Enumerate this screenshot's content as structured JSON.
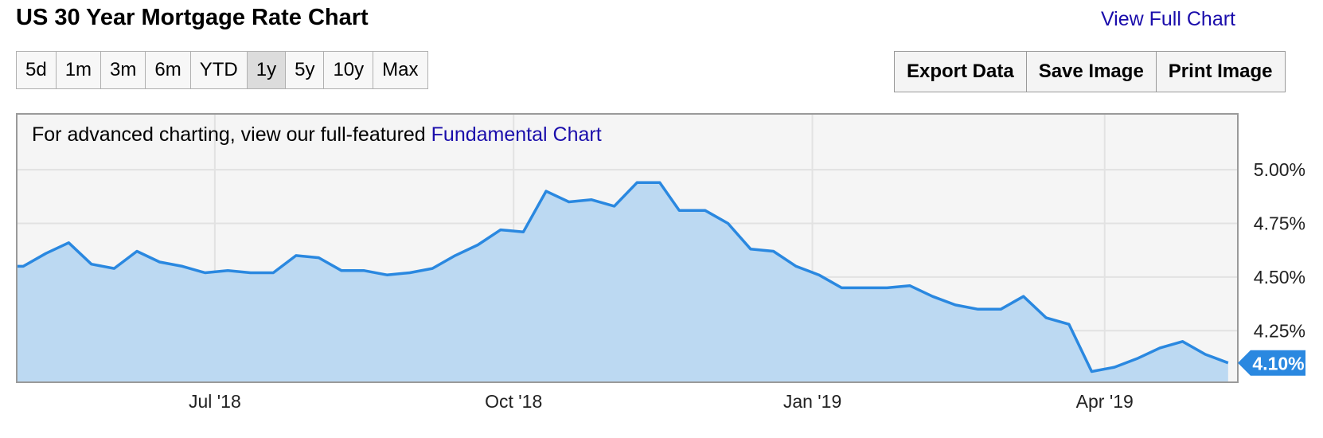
{
  "header": {
    "title": "US 30 Year Mortgage Rate Chart",
    "view_full_chart": "View Full Chart"
  },
  "ranges": [
    {
      "label": "5d",
      "active": false
    },
    {
      "label": "1m",
      "active": false
    },
    {
      "label": "3m",
      "active": false
    },
    {
      "label": "6m",
      "active": false
    },
    {
      "label": "YTD",
      "active": false
    },
    {
      "label": "1y",
      "active": true
    },
    {
      "label": "5y",
      "active": false
    },
    {
      "label": "10y",
      "active": false
    },
    {
      "label": "Max",
      "active": false
    }
  ],
  "actions": {
    "export": "Export Data",
    "save": "Save Image",
    "print": "Print Image"
  },
  "promo": {
    "text": "For advanced charting, view our full-featured ",
    "link": "Fundamental Chart"
  },
  "colors": {
    "line": "#2a88e0",
    "fill": "#bcd9f2",
    "plot_bg": "#f5f5f5",
    "grid": "#e2e2e2",
    "link": "#1a0dab"
  },
  "chart_data": {
    "type": "area",
    "x": [
      "2018-05-03",
      "2018-05-10",
      "2018-05-17",
      "2018-05-24",
      "2018-05-31",
      "2018-06-07",
      "2018-06-14",
      "2018-06-21",
      "2018-06-28",
      "2018-07-05",
      "2018-07-12",
      "2018-07-19",
      "2018-07-26",
      "2018-08-02",
      "2018-08-09",
      "2018-08-16",
      "2018-08-23",
      "2018-08-30",
      "2018-09-06",
      "2018-09-13",
      "2018-09-20",
      "2018-09-27",
      "2018-10-04",
      "2018-10-11",
      "2018-10-18",
      "2018-10-25",
      "2018-11-01",
      "2018-11-08",
      "2018-11-15",
      "2018-11-21",
      "2018-11-29",
      "2018-12-06",
      "2018-12-13",
      "2018-12-20",
      "2018-12-27",
      "2019-01-03",
      "2019-01-10",
      "2019-01-17",
      "2019-01-24",
      "2019-01-31",
      "2019-02-07",
      "2019-02-14",
      "2019-02-21",
      "2019-02-28",
      "2019-03-07",
      "2019-03-14",
      "2019-03-21",
      "2019-03-28",
      "2019-04-04",
      "2019-04-11",
      "2019-04-18",
      "2019-04-25",
      "2019-05-02",
      "2019-05-09"
    ],
    "y": [
      4.55,
      4.61,
      4.66,
      4.56,
      4.54,
      4.62,
      4.57,
      4.55,
      4.52,
      4.53,
      4.52,
      4.52,
      4.6,
      4.59,
      4.53,
      4.53,
      4.51,
      4.52,
      4.54,
      4.6,
      4.65,
      4.72,
      4.71,
      4.9,
      4.85,
      4.86,
      4.83,
      4.94,
      4.94,
      4.81,
      4.81,
      4.75,
      4.63,
      4.62,
      4.55,
      4.51,
      4.45,
      4.45,
      4.45,
      4.46,
      4.41,
      4.37,
      4.35,
      4.35,
      4.41,
      4.31,
      4.28,
      4.06,
      4.08,
      4.12,
      4.17,
      4.2,
      4.14,
      4.1
    ],
    "x_ticks": [
      "Jul '18",
      "Oct '18",
      "Jan '19",
      "Apr '19"
    ],
    "x_tick_dates": [
      "2018-07-01",
      "2018-10-01",
      "2019-01-01",
      "2019-04-01"
    ],
    "y_ticks": [
      "5.00%",
      "4.75%",
      "4.50%",
      "4.25%"
    ],
    "y_tick_values": [
      5.0,
      4.75,
      4.5,
      4.25
    ],
    "ylim": [
      4.01,
      5.26
    ],
    "xlim": [
      "2018-05-01",
      "2019-05-12"
    ],
    "last_value_label": "4.10%",
    "grid": true
  }
}
